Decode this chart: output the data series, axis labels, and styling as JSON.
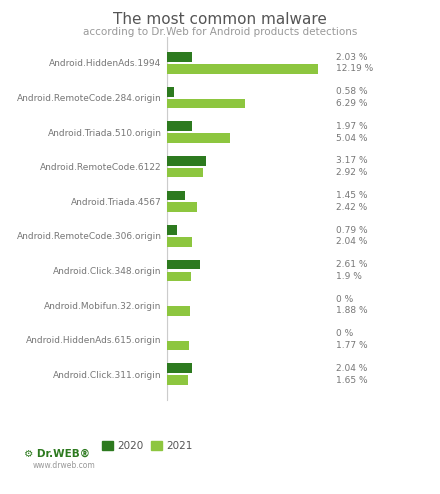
{
  "title": "The most common malware",
  "subtitle": "according to Dr.Web for Android products detections",
  "categories": [
    "Android.HiddenAds.1994",
    "Android.RemoteCode.284.origin",
    "Android.Triada.510.origin",
    "Android.RemoteCode.6122",
    "Android.Triada.4567",
    "Android.RemoteCode.306.origin",
    "Android.Click.348.origin",
    "Android.Mobifun.32.origin",
    "Android.HiddenAds.615.origin",
    "Android.Click.311.origin"
  ],
  "values_2020": [
    2.03,
    0.58,
    1.97,
    3.17,
    1.45,
    0.79,
    2.61,
    0.0,
    0.0,
    2.04
  ],
  "values_2021": [
    12.19,
    6.29,
    5.04,
    2.92,
    2.42,
    2.04,
    1.9,
    1.88,
    1.77,
    1.65
  ],
  "labels_2020": [
    "2.03 %",
    "0.58 %",
    "1.97 %",
    "3.17 %",
    "1.45 %",
    "0.79 %",
    "2.61 %",
    "0 %",
    "0 %",
    "2.04 %"
  ],
  "labels_2021": [
    "12.19 %",
    "6.29 %",
    "5.04 %",
    "2.92 %",
    "2.42 %",
    "2.04 %",
    "1.9 %",
    "1.88 %",
    "1.77 %",
    "1.65 %"
  ],
  "color_2020": "#2d7a1f",
  "color_2021": "#8dc63f",
  "background_color": "#ffffff",
  "title_fontsize": 11,
  "subtitle_fontsize": 7.5,
  "tick_fontsize": 6.5,
  "value_fontsize": 6.5,
  "legend_fontsize": 7.5,
  "legend_2020": "2020",
  "legend_2021": "2021",
  "xlim_max": 13.5
}
